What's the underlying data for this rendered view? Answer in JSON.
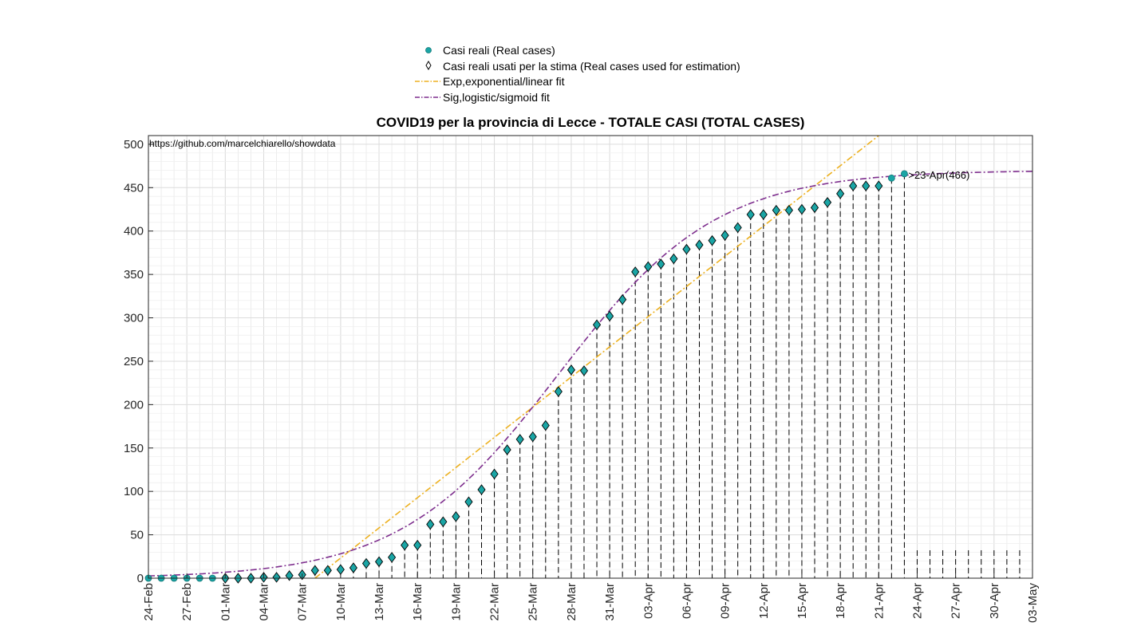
{
  "chart_data": {
    "type": "line",
    "title": "COVID19 per la provincia di Lecce - TOTALE CASI (TOTAL CASES)",
    "source_note": "https://github.com/marcelchiarello/showdata",
    "annotation": ">23-Apr(466)",
    "x_tick_labels": [
      "24-Feb",
      "27-Feb",
      "01-Mar",
      "04-Mar",
      "07-Mar",
      "10-Mar",
      "13-Mar",
      "16-Mar",
      "19-Mar",
      "22-Mar",
      "25-Mar",
      "28-Mar",
      "31-Mar",
      "03-Apr",
      "06-Apr",
      "09-Apr",
      "12-Apr",
      "15-Apr",
      "18-Apr",
      "21-Apr",
      "24-Apr",
      "27-Apr",
      "30-Apr",
      "03-May"
    ],
    "x_range": [
      "24-Feb",
      "03-May"
    ],
    "ylim": [
      0,
      510
    ],
    "y_ticks": [
      0,
      50,
      100,
      150,
      200,
      250,
      300,
      350,
      400,
      450,
      500
    ],
    "grid": true,
    "legend_position": "top-center",
    "legend": {
      "real": "Casi reali (Real cases)",
      "used": "Casi reali usati per la stima (Real cases used for estimation)",
      "exp": "Exp,exponential/linear fit",
      "sig": "Sig,logistic/sigmoid fit"
    },
    "colors": {
      "real": "#1aa5a5",
      "exp": "#edb120",
      "sig": "#7e2f8e",
      "axis": "#262626",
      "grid": "#dcdcdc"
    },
    "real_cases": {
      "start_date": "24-Feb",
      "end_date": "23-Apr",
      "values": [
        0,
        0,
        0,
        0,
        0,
        0,
        0,
        0,
        0,
        1,
        1,
        3,
        4,
        9,
        9,
        10,
        12,
        17,
        19,
        24,
        38,
        38,
        62,
        65,
        71,
        88,
        102,
        120,
        148,
        160,
        163,
        176,
        215,
        240,
        239,
        292,
        302,
        321,
        353,
        359,
        362,
        368,
        379,
        384,
        389,
        395,
        404,
        419,
        419,
        424,
        424,
        425,
        427,
        433,
        443,
        452,
        452,
        452,
        461,
        466
      ]
    },
    "estimation_cases": {
      "start_date": "01-Mar",
      "end_date": "21-Apr"
    },
    "exp_fit": {
      "type": "linear",
      "points": [
        [
          "08-Mar",
          0
        ],
        [
          "21-Apr",
          510
        ]
      ]
    },
    "sig_fit": {
      "type": "logistic",
      "K": 470,
      "midpoint": "27-Mar",
      "growth_rate": 0.162,
      "start_date": "24-Feb",
      "end_date": "03-May"
    }
  }
}
